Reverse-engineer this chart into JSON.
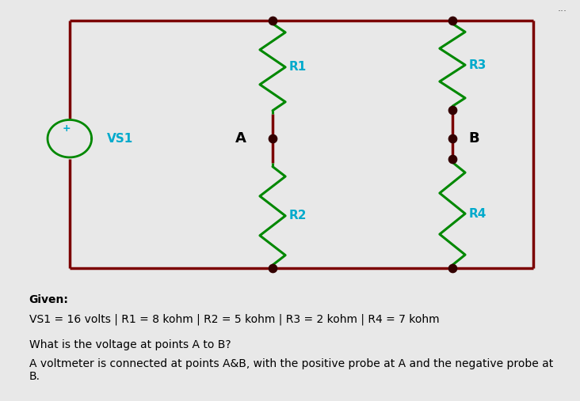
{
  "bg_color": "#e8e8e8",
  "circuit_bg": "#ffffff",
  "wire_color": "#7B0000",
  "resistor_color": "#008800",
  "node_color": "#330000",
  "vs1_color": "#008800",
  "label_color": "#00AACC",
  "node_label_color": "#000000",
  "text_color": "#000000",
  "wire_lw": 2.5,
  "resistor_lw": 2.2,
  "given_text": "Given:",
  "values_text": "VS1 = 16 volts | R1 = 8 kohm | R2 = 5 kohm | R3 = 2 kohm | R4 = 7 kohm",
  "question_text": "What is the voltage at points A to B?",
  "voltmeter_text": "A voltmeter is connected at points A&B, with the positive probe at A and the negative probe at\nB.",
  "dots": "..."
}
